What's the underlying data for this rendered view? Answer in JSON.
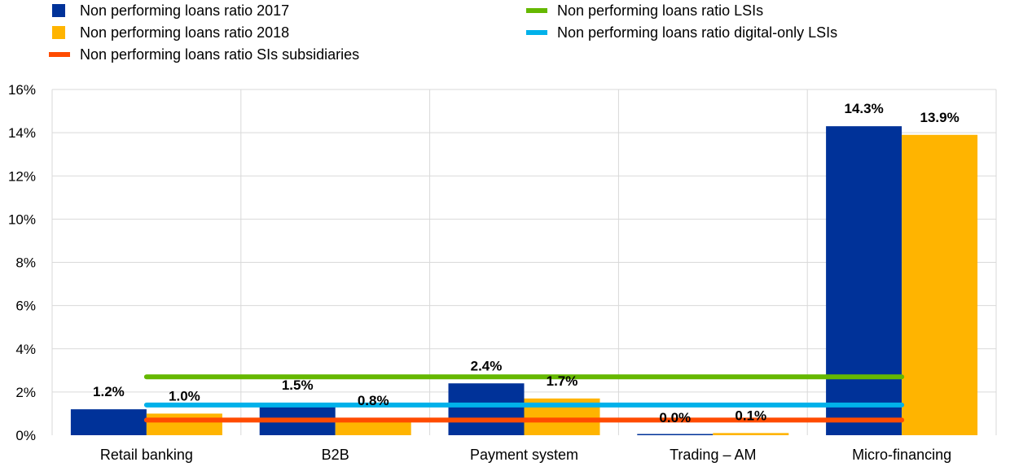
{
  "chart_data": {
    "type": "bar",
    "title": "",
    "xlabel": "",
    "ylabel": "",
    "ylim": [
      0,
      16
    ],
    "yticks": [
      0,
      2,
      4,
      6,
      8,
      10,
      12,
      14,
      16
    ],
    "ytick_labels": [
      "0%",
      "2%",
      "4%",
      "6%",
      "8%",
      "10%",
      "12%",
      "14%",
      "16%"
    ],
    "grid": true,
    "legend_position": "top",
    "categories": [
      "Retail banking",
      "B2B",
      "Payment system",
      "Trading – AM",
      "Micro-financing"
    ],
    "series": [
      {
        "name": "Non performing loans ratio 2017",
        "kind": "bar",
        "color": "#003299",
        "values": [
          1.2,
          1.5,
          2.4,
          0.0,
          14.3
        ],
        "labels": [
          "1.2%",
          "1.5%",
          "2.4%",
          "0.0%",
          "14.3%"
        ]
      },
      {
        "name": "Non performing loans ratio 2018",
        "kind": "bar",
        "color": "#FFB400",
        "values": [
          1.0,
          0.8,
          1.7,
          0.1,
          13.9
        ],
        "labels": [
          "1.0%",
          "0.8%",
          "1.7%",
          "0.1%",
          "13.9%"
        ]
      },
      {
        "name": "Non performing loans ratio SIs subsidiaries",
        "kind": "line",
        "color": "#FF4B00",
        "value": 0.7
      },
      {
        "name": "Non performing loans ratio LSIs",
        "kind": "line",
        "color": "#65B800",
        "value": 2.7
      },
      {
        "name": "Non performing loans ratio digital-only LSIs",
        "kind": "line",
        "color": "#00B1EA",
        "value": 1.4
      }
    ],
    "legend_order": [
      "Non performing loans ratio 2017",
      "Non performing loans ratio 2018",
      "Non performing loans ratio SIs subsidiaries",
      "Non performing loans ratio LSIs",
      "Non performing loans ratio digital-only LSIs"
    ]
  }
}
